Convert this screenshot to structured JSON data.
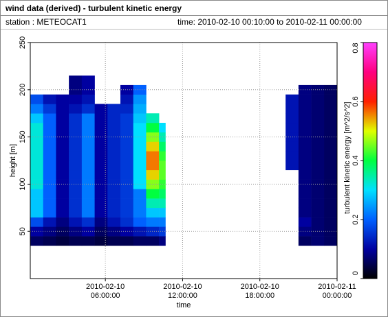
{
  "header": {
    "title": "wind data (derived) - turbulent kinetic energy",
    "station": "station : METEOCAT1",
    "time": "time: 2010-02-10 00:10:00 to 2010-02-11 00:00:00"
  },
  "chart_data": {
    "type": "heatmap",
    "xlabel": "time",
    "ylabel": "height [m]",
    "colorbar_label": "turbulent kinetic energy [m^2/s^2]",
    "xlim": [
      "2010-02-10 00:10:00",
      "2010-02-11 00:00:00"
    ],
    "xticks": [
      "2010-02-10 06:00:00",
      "2010-02-10 12:00:00",
      "2010-02-10 18:00:00",
      "2010-02-11 00:00:00"
    ],
    "ylim": [
      0,
      250
    ],
    "yticks": [
      50,
      100,
      150,
      200,
      250
    ],
    "clim": [
      0,
      0.8
    ],
    "cticks": [
      0,
      0.2,
      0.4,
      0.6,
      0.8
    ],
    "colormap": [
      "#000000",
      "#0000a0",
      "#0060ff",
      "#00e0ff",
      "#00ff40",
      "#e0ff00",
      "#ff2000",
      "#ff0080",
      "#ff40ff"
    ],
    "grid": true,
    "x_edges": [
      "2010-02-10 00:10:00",
      "2010-02-10 01:10:00",
      "2010-02-10 02:10:00",
      "2010-02-10 03:10:00",
      "2010-02-10 04:10:00",
      "2010-02-10 05:10:00",
      "2010-02-10 06:10:00",
      "2010-02-10 07:10:00",
      "2010-02-10 08:10:00",
      "2010-02-10 09:10:00",
      "2010-02-10 10:10:00",
      "2010-02-10 10:40:00",
      "2010-02-10 20:00:00",
      "2010-02-10 21:00:00",
      "2010-02-10 22:00:00",
      "2010-02-10 23:00:00",
      "2010-02-11 00:00:00"
    ],
    "y_edges": [
      35,
      45,
      55,
      65,
      75,
      85,
      95,
      105,
      115,
      125,
      135,
      145,
      155,
      165,
      175,
      185,
      195,
      205,
      215
    ],
    "values": [
      [
        0.06,
        0.05,
        0.04,
        0.05,
        0.05,
        0.04,
        0.05,
        0.05,
        0.06,
        0.06,
        0.08,
        null,
        null,
        0.06,
        0.07,
        0.06
      ],
      [
        0.1,
        0.08,
        0.06,
        0.08,
        0.1,
        0.06,
        0.08,
        0.1,
        0.12,
        0.14,
        0.16,
        null,
        null,
        0.08,
        0.07,
        0.06
      ],
      [
        0.18,
        0.12,
        0.08,
        0.12,
        0.15,
        0.08,
        0.12,
        0.15,
        0.2,
        0.22,
        0.22,
        null,
        null,
        0.1,
        0.07,
        0.06
      ],
      [
        0.28,
        0.2,
        0.1,
        0.15,
        0.22,
        0.1,
        0.14,
        0.16,
        0.22,
        0.28,
        0.28,
        null,
        null,
        0.08,
        0.07,
        0.06
      ],
      [
        0.28,
        0.2,
        0.1,
        0.15,
        0.22,
        0.1,
        0.14,
        0.16,
        0.22,
        0.34,
        0.34,
        null,
        null,
        0.08,
        0.07,
        0.06
      ],
      [
        0.28,
        0.2,
        0.1,
        0.15,
        0.22,
        0.1,
        0.14,
        0.16,
        0.22,
        0.4,
        0.38,
        null,
        null,
        0.08,
        0.07,
        0.06
      ],
      [
        0.32,
        0.2,
        0.1,
        0.15,
        0.22,
        0.1,
        0.14,
        0.16,
        0.3,
        0.46,
        0.42,
        null,
        null,
        0.08,
        0.07,
        0.06
      ],
      [
        0.32,
        0.2,
        0.1,
        0.15,
        0.22,
        0.1,
        0.14,
        0.16,
        0.3,
        0.52,
        0.44,
        null,
        null,
        0.08,
        0.07,
        0.06
      ],
      [
        0.32,
        0.2,
        0.1,
        0.15,
        0.22,
        0.1,
        0.14,
        0.16,
        0.3,
        0.56,
        0.44,
        null,
        0.12,
        0.08,
        0.07,
        0.06
      ],
      [
        0.32,
        0.2,
        0.1,
        0.15,
        0.22,
        0.1,
        0.14,
        0.16,
        0.3,
        0.56,
        0.42,
        null,
        0.12,
        0.08,
        0.07,
        0.06
      ],
      [
        0.32,
        0.2,
        0.1,
        0.15,
        0.22,
        0.1,
        0.14,
        0.16,
        0.3,
        0.52,
        0.38,
        null,
        0.12,
        0.08,
        0.07,
        0.06
      ],
      [
        0.32,
        0.2,
        0.1,
        0.15,
        0.22,
        0.1,
        0.14,
        0.16,
        0.3,
        0.46,
        0.34,
        null,
        0.12,
        0.08,
        0.07,
        0.06
      ],
      [
        0.32,
        0.2,
        0.1,
        0.15,
        0.22,
        0.1,
        0.14,
        0.16,
        0.3,
        0.4,
        0.3,
        null,
        0.12,
        0.08,
        0.07,
        0.06
      ],
      [
        0.28,
        0.2,
        0.1,
        0.15,
        0.22,
        0.1,
        0.14,
        0.16,
        0.28,
        0.34,
        null,
        null,
        0.12,
        0.08,
        0.07,
        0.06
      ],
      [
        0.22,
        0.16,
        0.1,
        0.12,
        0.15,
        0.1,
        0.14,
        0.14,
        0.26,
        null,
        null,
        null,
        0.12,
        0.08,
        0.07,
        0.06
      ],
      [
        0.18,
        0.12,
        0.1,
        0.1,
        0.12,
        null,
        null,
        0.12,
        0.24,
        null,
        null,
        null,
        0.12,
        0.08,
        0.07,
        0.06
      ],
      [
        null,
        null,
        null,
        0.08,
        0.1,
        null,
        null,
        0.1,
        0.2,
        null,
        null,
        null,
        null,
        0.08,
        0.07,
        0.06
      ],
      [
        null,
        null,
        null,
        0.08,
        0.1,
        null,
        null,
        null,
        null,
        null,
        null,
        null,
        null,
        null,
        null,
        null
      ]
    ]
  }
}
